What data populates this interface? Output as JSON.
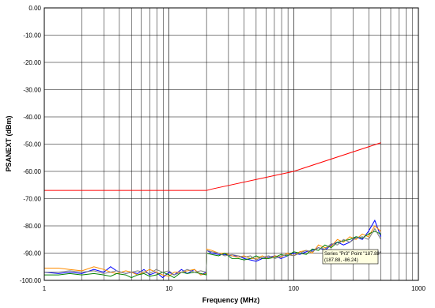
{
  "chart_data": {
    "type": "line",
    "title": "",
    "xlabel": "Frequency (MHz)",
    "ylabel": "PSANEXT (dBm)",
    "x_scale": "log",
    "xlim": [
      1,
      1000
    ],
    "ylim": [
      -100,
      0
    ],
    "x_ticks": [
      "1",
      "10",
      "100",
      "1000"
    ],
    "y_ticks": [
      "0.00",
      "-10.00",
      "-20.00",
      "-30.00",
      "-40.00",
      "-50.00",
      "-60.00",
      "-70.00",
      "-80.00",
      "-90.00",
      "-100.00"
    ],
    "grid": true,
    "legend": "none",
    "series": [
      {
        "color": "#ff0000",
        "x": [
          1,
          20,
          22,
          100,
          500
        ],
        "y": [
          -67,
          -67,
          -66.5,
          -60,
          -49.5
        ]
      },
      {
        "color": "#0000ff",
        "x": [
          1,
          1.3,
          1.6,
          2,
          2.5,
          3,
          3.4,
          3.8,
          4.5,
          5,
          5.6,
          6.3,
          7,
          7.9,
          8.9,
          10,
          11,
          12.6,
          14,
          16,
          18,
          19.9,
          20.1,
          22,
          25,
          28,
          32,
          36,
          40,
          45,
          50,
          56,
          63,
          71,
          79,
          89,
          100,
          112,
          126,
          141,
          158,
          178,
          200,
          224,
          251,
          282,
          316,
          355,
          398,
          447,
          500
        ],
        "y": [
          -97,
          -97.5,
          -97,
          -97.5,
          -96,
          -97,
          -95,
          -96.5,
          -97.5,
          -97,
          -97.5,
          -96,
          -98,
          -97,
          -99,
          -97,
          -98,
          -96,
          -97.5,
          -96,
          -98,
          -97,
          -89,
          -90,
          -90.5,
          -90.5,
          -91,
          -91,
          -92,
          -92.5,
          -93,
          -92,
          -91.5,
          -91,
          -92,
          -91,
          -90,
          -90.5,
          -89.5,
          -89,
          -88,
          -89,
          -87,
          -86,
          -87,
          -86,
          -84,
          -85,
          -82,
          -78,
          -84
        ]
      },
      {
        "color": "#ff8c00",
        "x": [
          1,
          1.3,
          1.6,
          2,
          2.5,
          3,
          3.4,
          3.8,
          4.5,
          5,
          5.6,
          6.3,
          7,
          7.9,
          8.9,
          10,
          11,
          12.6,
          14,
          16,
          18,
          19.9,
          20.1,
          22,
          25,
          28,
          32,
          36,
          40,
          45,
          50,
          56,
          63,
          71,
          79,
          89,
          100,
          112,
          126,
          141,
          158,
          178,
          200,
          224,
          251,
          282,
          316,
          355,
          398,
          447,
          500
        ],
        "y": [
          -95.5,
          -95.5,
          -96,
          -96.5,
          -95,
          -96,
          -97,
          -97.5,
          -96.5,
          -97,
          -98,
          -97,
          -96,
          -97,
          -98,
          -98.5,
          -97,
          -97,
          -96.5,
          -96,
          -98,
          -97.5,
          -88.5,
          -89,
          -90,
          -90,
          -91,
          -91.5,
          -91,
          -92,
          -92,
          -91,
          -92,
          -91,
          -91.5,
          -90,
          -91,
          -89.5,
          -89,
          -90,
          -87,
          -88,
          -87.5,
          -85,
          -86,
          -84,
          -85,
          -83,
          -84,
          -80,
          -82
        ]
      },
      {
        "color": "#008000",
        "x": [
          1,
          1.3,
          1.6,
          2,
          2.5,
          3,
          3.4,
          3.8,
          4.5,
          5,
          5.6,
          6.3,
          7,
          7.9,
          8.9,
          10,
          11,
          12.6,
          14,
          16,
          18,
          19.9,
          20.1,
          22,
          25,
          28,
          32,
          36,
          40,
          45,
          50,
          56,
          63,
          71,
          79,
          89,
          100,
          112,
          126,
          141,
          158,
          178,
          200,
          224,
          251,
          282,
          316,
          355,
          398,
          447,
          500
        ],
        "y": [
          -98,
          -98,
          -97.5,
          -98,
          -97.5,
          -98,
          -98.5,
          -97.5,
          -98,
          -99,
          -98,
          -97.5,
          -98.5,
          -98,
          -97,
          -98,
          -99,
          -97,
          -97.5,
          -97,
          -97.5,
          -98,
          -90,
          -90.5,
          -91,
          -90,
          -92,
          -92,
          -92.5,
          -92,
          -91,
          -92,
          -92,
          -91.5,
          -90.5,
          -91,
          -89.5,
          -90,
          -90.5,
          -88.5,
          -89,
          -87,
          -88,
          -86,
          -85.5,
          -85,
          -84,
          -84.5,
          -83,
          -82,
          -83
        ]
      },
      {
        "color": "#7f7f7f",
        "x": [
          1,
          1.3,
          1.6,
          2,
          2.5,
          3,
          3.4,
          3.8,
          4.5,
          5,
          5.6,
          6.3,
          7,
          7.9,
          8.9,
          10,
          11,
          12.6,
          14,
          16,
          18,
          19.9,
          20.1,
          22,
          25,
          28,
          32,
          36,
          40,
          45,
          50,
          56,
          63,
          71,
          79,
          89,
          100,
          112,
          126,
          141,
          158,
          178,
          200,
          224,
          251,
          282,
          316,
          355,
          398,
          447,
          500
        ],
        "y": [
          -97,
          -97,
          -96.5,
          -97,
          -96.5,
          -97.5,
          -97,
          -96.5,
          -97.5,
          -97,
          -96.5,
          -97,
          -97.5,
          -96,
          -97,
          -96.5,
          -98,
          -97,
          -96,
          -97,
          -96.5,
          -97,
          -89,
          -89.5,
          -90,
          -91,
          -90.5,
          -91,
          -91.5,
          -91,
          -92.5,
          -91.5,
          -91,
          -92,
          -91,
          -90.5,
          -91,
          -90,
          -89,
          -89.5,
          -88,
          -88.5,
          -86.5,
          -87,
          -85,
          -86,
          -84.5,
          -84,
          -85,
          -81,
          -85
        ]
      }
    ],
    "tooltip": {
      "line1": "Series \"Pr3\" Point \"187.88\"",
      "line2": "(187.88, -86.24)"
    }
  }
}
